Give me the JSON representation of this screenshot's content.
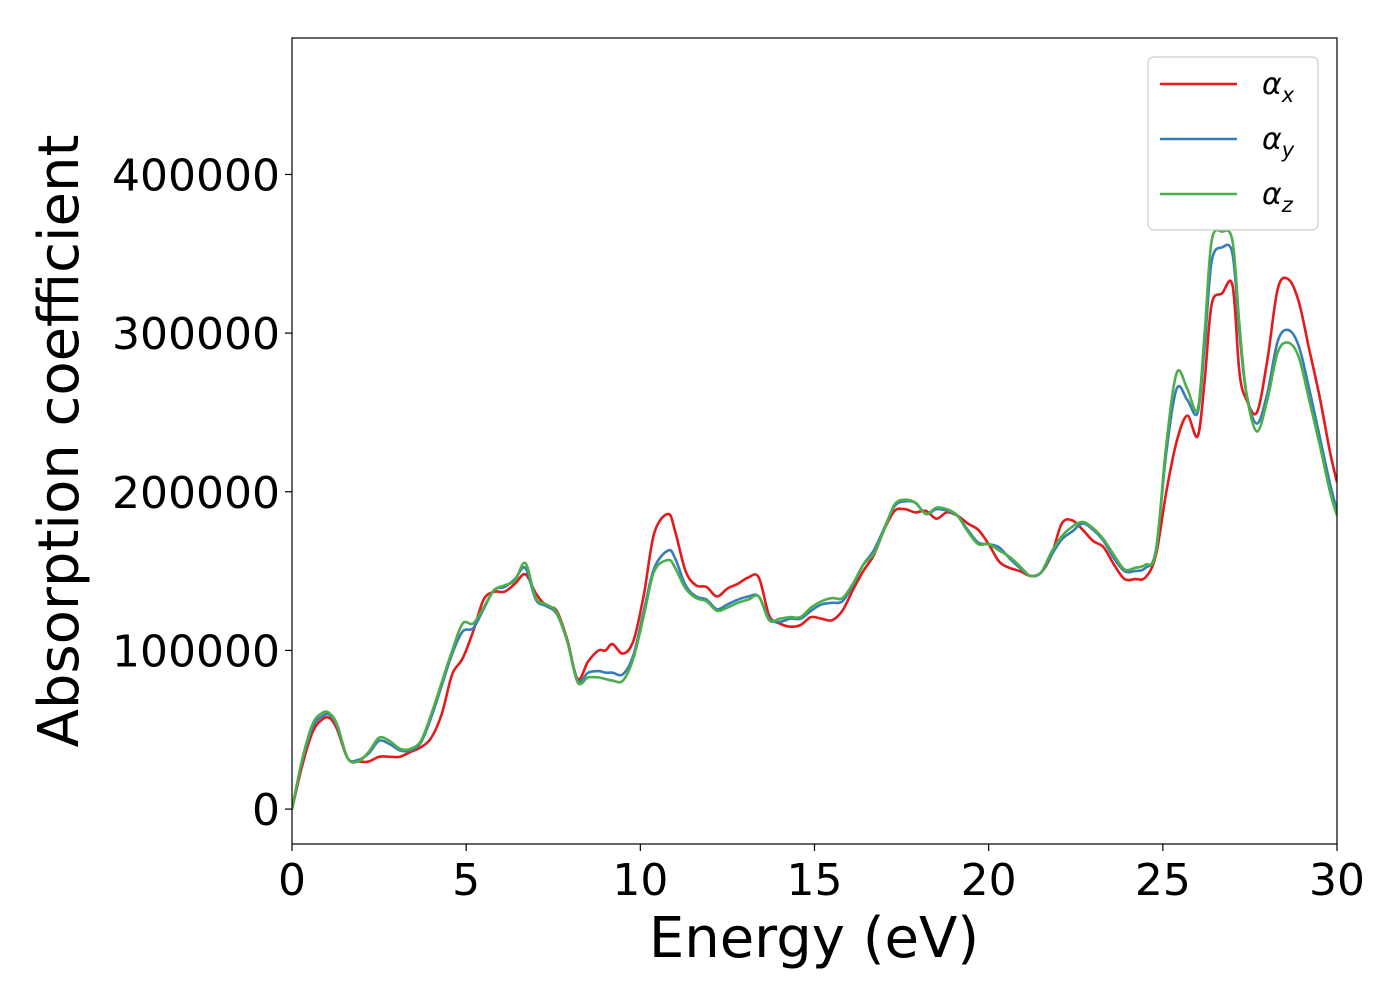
{
  "chart_data": {
    "type": "line",
    "title": "",
    "xlabel": "Energy (eV)",
    "ylabel": "Absorption coefficient",
    "xlim": [
      0,
      30
    ],
    "ylim": [
      -22000,
      486000
    ],
    "xticks": [
      0,
      5,
      10,
      15,
      20,
      25,
      30
    ],
    "xtick_labels": [
      "0",
      "5",
      "10",
      "15",
      "20",
      "25",
      "30"
    ],
    "yticks": [
      0,
      100000,
      200000,
      300000,
      400000
    ],
    "ytick_labels": [
      "0",
      "100000",
      "200000",
      "300000",
      "400000"
    ],
    "grid": false,
    "legend_position": "top-right",
    "series": [
      {
        "name": "α_x",
        "label_main": "α",
        "label_sub": "x",
        "color": "#e41a1c",
        "x": [
          0,
          0.3,
          0.6,
          0.9,
          1.1,
          1.3,
          1.6,
          1.9,
          2.2,
          2.5,
          2.8,
          3.1,
          3.4,
          3.7,
          4.0,
          4.3,
          4.6,
          4.9,
          5.2,
          5.5,
          5.8,
          6.1,
          6.4,
          6.7,
          7.0,
          7.3,
          7.6,
          7.9,
          8.2,
          8.5,
          8.8,
          9.0,
          9.2,
          9.5,
          9.8,
          10.1,
          10.4,
          10.8,
          11.0,
          11.3,
          11.6,
          11.9,
          12.2,
          12.5,
          12.8,
          13.1,
          13.4,
          13.7,
          14.0,
          14.3,
          14.6,
          14.9,
          15.2,
          15.5,
          15.8,
          16.1,
          16.4,
          16.7,
          17.0,
          17.3,
          17.6,
          17.9,
          18.2,
          18.5,
          18.8,
          19.1,
          19.4,
          19.7,
          20.0,
          20.3,
          20.6,
          20.9,
          21.2,
          21.5,
          21.8,
          22.1,
          22.4,
          22.7,
          23.0,
          23.3,
          23.6,
          23.9,
          24.2,
          24.5,
          24.8,
          25.1,
          25.4,
          25.7,
          26.0,
          26.2,
          26.4,
          26.7,
          27.0,
          27.2,
          27.4,
          27.7,
          28.0,
          28.3,
          28.6,
          28.9,
          29.2,
          29.5,
          29.8,
          30.0
        ],
        "y": [
          0,
          28000,
          49000,
          57000,
          57000,
          50000,
          32000,
          30000,
          30000,
          33000,
          33000,
          33000,
          36000,
          39000,
          45000,
          60000,
          85000,
          95000,
          112000,
          132000,
          137000,
          137000,
          142000,
          148000,
          136000,
          128000,
          125000,
          107000,
          82000,
          93000,
          100000,
          100000,
          104000,
          98000,
          106000,
          135000,
          174000,
          186000,
          175000,
          150000,
          141000,
          140000,
          134000,
          139000,
          142000,
          146000,
          146000,
          122000,
          117000,
          115000,
          116000,
          121000,
          120000,
          119000,
          125000,
          138000,
          150000,
          160000,
          176000,
          188000,
          189000,
          187000,
          188000,
          183000,
          187000,
          185000,
          180000,
          176000,
          167000,
          156000,
          152000,
          150000,
          147000,
          149000,
          160000,
          180000,
          182000,
          176000,
          169000,
          165000,
          154000,
          145000,
          145000,
          146000,
          160000,
          200000,
          232000,
          248000,
          235000,
          270000,
          318000,
          325000,
          330000,
          275000,
          258000,
          250000,
          283000,
          328000,
          334000,
          320000,
          290000,
          260000,
          225000,
          206000
        ]
      },
      {
        "name": "α_y",
        "label_main": "α",
        "label_sub": "y",
        "color": "#377eb8",
        "x": [
          0,
          0.3,
          0.6,
          0.9,
          1.1,
          1.3,
          1.6,
          1.9,
          2.2,
          2.5,
          2.8,
          3.1,
          3.4,
          3.7,
          4.0,
          4.3,
          4.6,
          4.9,
          5.2,
          5.5,
          5.8,
          6.1,
          6.4,
          6.7,
          7.0,
          7.3,
          7.6,
          7.9,
          8.2,
          8.5,
          8.8,
          9.0,
          9.2,
          9.5,
          9.8,
          10.1,
          10.4,
          10.8,
          11.0,
          11.3,
          11.6,
          11.9,
          12.2,
          12.5,
          12.8,
          13.1,
          13.4,
          13.7,
          14.0,
          14.3,
          14.6,
          14.9,
          15.2,
          15.5,
          15.8,
          16.1,
          16.4,
          16.7,
          17.0,
          17.3,
          17.6,
          17.9,
          18.2,
          18.5,
          18.8,
          19.1,
          19.4,
          19.7,
          20.0,
          20.3,
          20.6,
          20.9,
          21.2,
          21.5,
          21.8,
          22.1,
          22.4,
          22.7,
          23.0,
          23.3,
          23.6,
          23.9,
          24.2,
          24.5,
          24.8,
          25.1,
          25.4,
          25.7,
          26.0,
          26.2,
          26.4,
          26.7,
          27.0,
          27.2,
          27.4,
          27.7,
          28.0,
          28.3,
          28.6,
          28.9,
          29.2,
          29.5,
          29.8,
          30.0
        ],
        "y": [
          0,
          31000,
          52000,
          59000,
          59000,
          52000,
          32000,
          31000,
          35000,
          43000,
          41000,
          37000,
          37000,
          42000,
          58000,
          78000,
          98000,
          112000,
          114000,
          126000,
          138000,
          140000,
          145000,
          152000,
          132000,
          128000,
          123000,
          106000,
          81000,
          86000,
          87000,
          86000,
          86000,
          85000,
          97000,
          125000,
          152000,
          163000,
          158000,
          141000,
          134000,
          132000,
          126000,
          129000,
          132000,
          134000,
          134000,
          120000,
          118000,
          120000,
          120000,
          125000,
          129000,
          130000,
          131000,
          141000,
          154000,
          163000,
          177000,
          191000,
          194000,
          193000,
          186000,
          189000,
          188000,
          185000,
          176000,
          168000,
          167000,
          165000,
          158000,
          152000,
          147000,
          149000,
          160000,
          170000,
          175000,
          180000,
          176000,
          169000,
          158000,
          150000,
          150000,
          152000,
          163000,
          225000,
          265000,
          258000,
          250000,
          292000,
          345000,
          354000,
          350000,
          300000,
          262000,
          243000,
          262000,
          295000,
          302000,
          292000,
          265000,
          235000,
          205000,
          188000
        ]
      },
      {
        "name": "α_z",
        "label_main": "α",
        "label_sub": "z",
        "color": "#4daf4a",
        "x": [
          0,
          0.3,
          0.6,
          0.9,
          1.1,
          1.3,
          1.6,
          1.9,
          2.2,
          2.5,
          2.8,
          3.1,
          3.4,
          3.7,
          4.0,
          4.3,
          4.6,
          4.9,
          5.2,
          5.5,
          5.8,
          6.1,
          6.4,
          6.7,
          7.0,
          7.3,
          7.6,
          7.9,
          8.2,
          8.5,
          8.8,
          9.0,
          9.2,
          9.5,
          9.8,
          10.1,
          10.4,
          10.8,
          11.0,
          11.3,
          11.6,
          11.9,
          12.2,
          12.5,
          12.8,
          13.1,
          13.4,
          13.7,
          14.0,
          14.3,
          14.6,
          14.9,
          15.2,
          15.5,
          15.8,
          16.1,
          16.4,
          16.7,
          17.0,
          17.3,
          17.6,
          17.9,
          18.2,
          18.5,
          18.8,
          19.1,
          19.4,
          19.7,
          20.0,
          20.3,
          20.6,
          20.9,
          21.2,
          21.5,
          21.8,
          22.1,
          22.4,
          22.7,
          23.0,
          23.3,
          23.6,
          23.9,
          24.2,
          24.5,
          24.8,
          25.1,
          25.4,
          25.7,
          26.0,
          26.2,
          26.4,
          26.7,
          27.0,
          27.2,
          27.4,
          27.7,
          28.0,
          28.3,
          28.6,
          28.9,
          29.2,
          29.5,
          29.8,
          30.0
        ],
        "y": [
          0,
          32000,
          54000,
          61000,
          60000,
          53000,
          32000,
          30000,
          36000,
          45000,
          43000,
          38000,
          38000,
          43000,
          60000,
          80000,
          100000,
          117000,
          117000,
          127000,
          138000,
          141000,
          144000,
          155000,
          133000,
          129000,
          124000,
          106000,
          80000,
          83000,
          83000,
          82000,
          81000,
          81000,
          95000,
          122000,
          150000,
          157000,
          152000,
          139000,
          133000,
          131000,
          125000,
          127000,
          130000,
          132000,
          134000,
          119000,
          120000,
          121000,
          121000,
          127000,
          131000,
          133000,
          133000,
          142000,
          154000,
          161000,
          176000,
          192000,
          195000,
          193000,
          186000,
          190000,
          189000,
          185000,
          175000,
          167000,
          167000,
          163000,
          159000,
          153000,
          147000,
          149000,
          162000,
          172000,
          178000,
          181000,
          177000,
          170000,
          160000,
          151000,
          152000,
          154000,
          162000,
          230000,
          275000,
          265000,
          252000,
          300000,
          358000,
          364000,
          358000,
          305000,
          262000,
          238000,
          258000,
          288000,
          294000,
          285000,
          258000,
          230000,
          200000,
          185000
        ]
      }
    ]
  }
}
